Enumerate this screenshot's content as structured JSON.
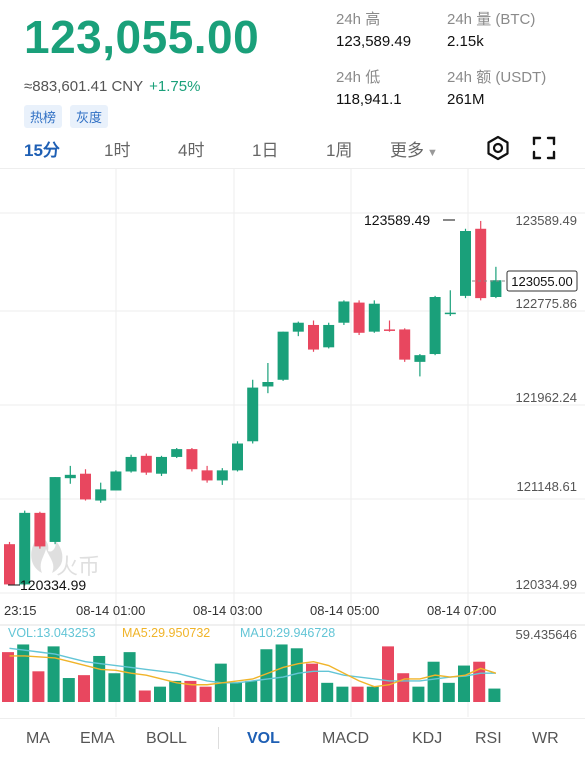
{
  "header": {
    "last_price": "123,055.00",
    "cny_price": "≈883,601.41 CNY",
    "change_pct": "+1.75%",
    "tags": [
      "热榜",
      "灰度"
    ]
  },
  "stats": {
    "high_label": "24h 高",
    "high_value": "123,589.49",
    "volume_label": "24h 量 (BTC)",
    "volume_value": "2.15k",
    "low_label": "24h 低",
    "low_value": "118,941.1",
    "turnover_label": "24h 额 (USDT)",
    "turnover_value": "261M"
  },
  "timeframes": {
    "items": [
      "15分",
      "1时",
      "4时",
      "1日",
      "1周"
    ],
    "active": "15分",
    "more_label": "更多"
  },
  "chart_data": {
    "type": "candlestick",
    "y_axis_labels": [
      "123589.49",
      "122775.86",
      "121962.24",
      "121148.61",
      "120334.99"
    ],
    "current_price_label": "123055.00",
    "max_marker": "123589.49",
    "min_marker": "120334.99",
    "x_axis_labels": [
      "23:15",
      "08-14 01:00",
      "08-14 03:00",
      "08-14 05:00",
      "08-14 07:00"
    ],
    "watermark": "火币",
    "candles": [
      {
        "o": 120700,
        "h": 120720,
        "l": 120340,
        "c": 120340
      },
      {
        "o": 120340,
        "h": 121000,
        "l": 120330,
        "c": 120980
      },
      {
        "o": 120980,
        "h": 120990,
        "l": 120660,
        "c": 120680
      },
      {
        "o": 120720,
        "h": 121300,
        "l": 120700,
        "c": 121300
      },
      {
        "o": 121290,
        "h": 121400,
        "l": 121240,
        "c": 121320
      },
      {
        "o": 121330,
        "h": 121370,
        "l": 121090,
        "c": 121100
      },
      {
        "o": 121090,
        "h": 121250,
        "l": 121070,
        "c": 121190
      },
      {
        "o": 121180,
        "h": 121360,
        "l": 121180,
        "c": 121350
      },
      {
        "o": 121350,
        "h": 121500,
        "l": 121340,
        "c": 121480
      },
      {
        "o": 121490,
        "h": 121510,
        "l": 121320,
        "c": 121340
      },
      {
        "o": 121330,
        "h": 121490,
        "l": 121310,
        "c": 121480
      },
      {
        "o": 121480,
        "h": 121560,
        "l": 121470,
        "c": 121550
      },
      {
        "o": 121550,
        "h": 121560,
        "l": 121350,
        "c": 121370
      },
      {
        "o": 121360,
        "h": 121400,
        "l": 121250,
        "c": 121270
      },
      {
        "o": 121270,
        "h": 121380,
        "l": 121230,
        "c": 121360
      },
      {
        "o": 121360,
        "h": 121620,
        "l": 121350,
        "c": 121600
      },
      {
        "o": 121620,
        "h": 122170,
        "l": 121600,
        "c": 122100
      },
      {
        "o": 122110,
        "h": 122320,
        "l": 122050,
        "c": 122150
      },
      {
        "o": 122170,
        "h": 122600,
        "l": 122160,
        "c": 122600
      },
      {
        "o": 122600,
        "h": 122690,
        "l": 122560,
        "c": 122680
      },
      {
        "o": 122660,
        "h": 122700,
        "l": 122420,
        "c": 122440
      },
      {
        "o": 122460,
        "h": 122680,
        "l": 122450,
        "c": 122660
      },
      {
        "o": 122680,
        "h": 122880,
        "l": 122660,
        "c": 122870
      },
      {
        "o": 122860,
        "h": 122880,
        "l": 122570,
        "c": 122590
      },
      {
        "o": 122600,
        "h": 122880,
        "l": 122590,
        "c": 122850
      },
      {
        "o": 122620,
        "h": 122700,
        "l": 122600,
        "c": 122610
      },
      {
        "o": 122620,
        "h": 122630,
        "l": 122330,
        "c": 122350
      },
      {
        "o": 122330,
        "h": 122400,
        "l": 122200,
        "c": 122390
      },
      {
        "o": 122400,
        "h": 122920,
        "l": 122390,
        "c": 122910
      },
      {
        "o": 122760,
        "h": 122970,
        "l": 122740,
        "c": 122770
      },
      {
        "o": 122920,
        "h": 123520,
        "l": 122900,
        "c": 123500
      },
      {
        "o": 123520,
        "h": 123590,
        "l": 122880,
        "c": 122900
      },
      {
        "o": 122910,
        "h": 123180,
        "l": 122900,
        "c": 123060
      }
    ],
    "volume": {
      "labels": {
        "vol": "VOL:13.043253",
        "ma5": "MA5:29.950732",
        "ma10": "MA10:29.946728",
        "max": "59.435646"
      },
      "bars": [
        52,
        60,
        32,
        58,
        25,
        28,
        48,
        30,
        52,
        12,
        16,
        22,
        22,
        16,
        40,
        20,
        22,
        55,
        60,
        56,
        40,
        20,
        16,
        16,
        16,
        58,
        30,
        16,
        42,
        20,
        38,
        42,
        14
      ],
      "ma5": [
        48,
        48,
        47,
        46,
        42,
        38,
        34,
        33,
        30,
        28,
        24,
        20,
        18,
        18,
        20,
        22,
        24,
        30,
        36,
        40,
        42,
        38,
        30,
        22,
        16,
        18,
        24,
        24,
        28,
        26,
        28,
        35,
        30
      ],
      "ma10": [
        56,
        54,
        52,
        50,
        46,
        42,
        40,
        38,
        36,
        34,
        32,
        30,
        26,
        22,
        20,
        20,
        22,
        24,
        26,
        30,
        32,
        32,
        28,
        26,
        24,
        22,
        22,
        22,
        24,
        26,
        27,
        30,
        30
      ]
    }
  },
  "indicators": {
    "main": [
      "MA",
      "EMA",
      "BOLL"
    ],
    "sub": [
      "VOL",
      "MACD",
      "KDJ",
      "RSI",
      "WR"
    ],
    "active": "VOL"
  },
  "colors": {
    "up": "#1aa07a",
    "down": "#e8475f",
    "ma5": "#f0b429",
    "ma10": "#63c5d6",
    "accent": "#1e5fb4"
  }
}
